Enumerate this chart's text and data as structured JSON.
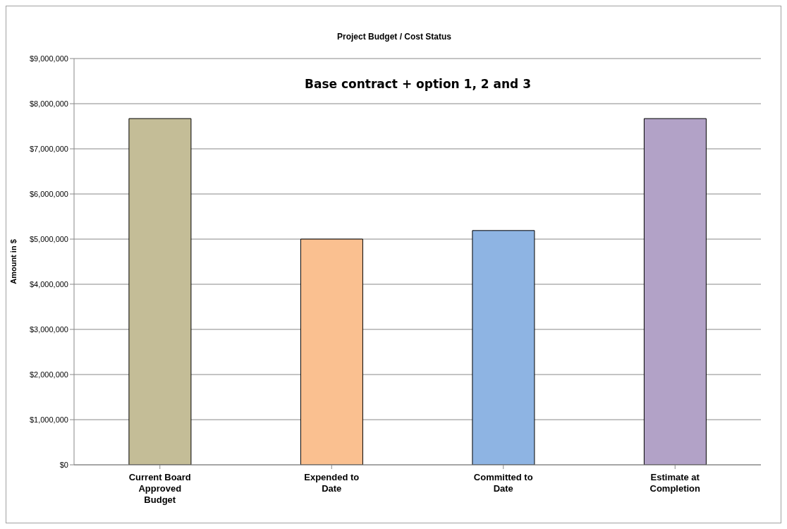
{
  "chart_data": {
    "type": "bar",
    "title": "Project Budget / Cost Status",
    "ylabel": "Amount in $",
    "categories": [
      "Current Board Approved Budget",
      "Expended to Date",
      "Committed to Date",
      "Estimate at Completion"
    ],
    "values": [
      7670000,
      5000000,
      5190000,
      7670000
    ],
    "colors": [
      "#c4bd97",
      "#fac090",
      "#8eb4e3",
      "#b2a2c7"
    ],
    "ylim": [
      0,
      9000000
    ],
    "yticks": [
      {
        "value": 0,
        "label": "$0"
      },
      {
        "value": 1000000,
        "label": "$1,000,000"
      },
      {
        "value": 2000000,
        "label": "$2,000,000"
      },
      {
        "value": 3000000,
        "label": "$3,000,000"
      },
      {
        "value": 4000000,
        "label": "$4,000,000"
      },
      {
        "value": 5000000,
        "label": "$5,000,000"
      },
      {
        "value": 6000000,
        "label": "$6,000,000"
      },
      {
        "value": 7000000,
        "label": "$7,000,000"
      },
      {
        "value": 8000000,
        "label": "$8,000,000"
      },
      {
        "value": 9000000,
        "label": "$9,000,000"
      }
    ],
    "grid": "y",
    "annotations": [
      "Base contract + option 1, 2 and 3"
    ]
  }
}
